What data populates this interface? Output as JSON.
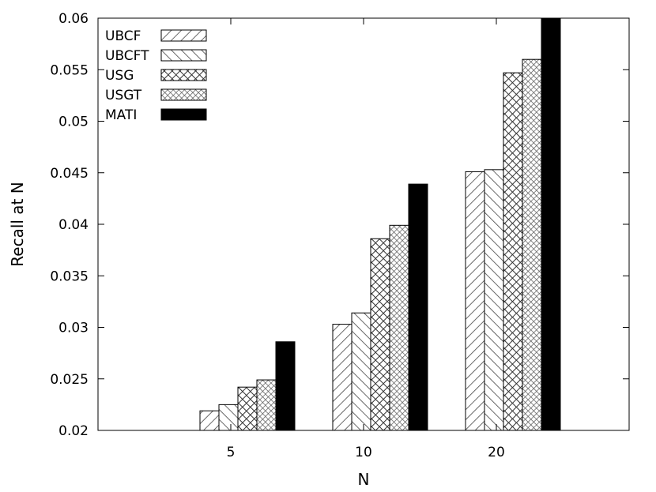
{
  "chart_data": {
    "type": "bar",
    "title": "",
    "xlabel": "N",
    "ylabel": "Recall at N",
    "categories": [
      "5",
      "10",
      "20"
    ],
    "ylim": [
      0.02,
      0.06
    ],
    "yticks": [
      0.02,
      0.025,
      0.03,
      0.035,
      0.04,
      0.045,
      0.05,
      0.055,
      0.06
    ],
    "ytick_labels": [
      "0.02",
      "0.025",
      "0.03",
      "0.035",
      "0.04",
      "0.045",
      "0.05",
      "0.055",
      "0.06"
    ],
    "grid": false,
    "legend_position": "top-left",
    "series": [
      {
        "name": "UBCF",
        "pattern": "diag-right",
        "values": [
          0.0219,
          0.0303,
          0.0451
        ]
      },
      {
        "name": "UBCFT",
        "pattern": "diag-left",
        "values": [
          0.0225,
          0.0314,
          0.0453
        ]
      },
      {
        "name": "USG",
        "pattern": "crosshatch-dense",
        "values": [
          0.0242,
          0.0386,
          0.0547
        ]
      },
      {
        "name": "USGT",
        "pattern": "crosshatch-fine",
        "values": [
          0.0249,
          0.0399,
          0.056
        ]
      },
      {
        "name": "MATI",
        "pattern": "solid",
        "color": "#000000",
        "values": [
          0.0286,
          0.0439,
          0.06
        ]
      }
    ]
  }
}
